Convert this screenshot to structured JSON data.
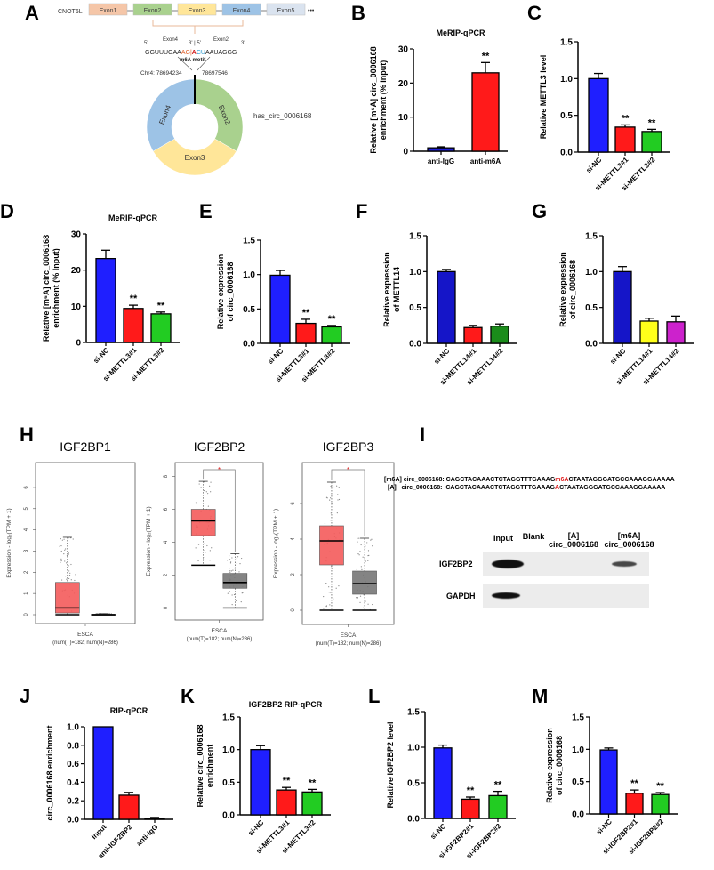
{
  "panels": {
    "A": {
      "letter": "A",
      "gene": "CNOT6L",
      "exons": [
        {
          "label": "Exon1",
          "color": "#f5c6a8"
        },
        {
          "label": "Exon2",
          "color": "#a9d18e"
        },
        {
          "label": "Exon3",
          "color": "#ffe699"
        },
        {
          "label": "Exon4",
          "color": "#9dc3e6"
        },
        {
          "label": "Exon5",
          "color": "#dae3ef"
        }
      ],
      "ellipsis": "•••",
      "junction": {
        "five_prime": "5'",
        "three_prime": "3'",
        "mid": "3' | 5'",
        "left_exon": "Exon4",
        "right_exon": "Exon2",
        "seq_left": "GGUUUGAA",
        "seq_ag": "AG",
        "seq_bar": "|",
        "seq_a": "A",
        "seq_cu": "CU",
        "seq_right": "AAUAGGG",
        "motif": "m6A motif",
        "chr_left": "Chr4: 78694234",
        "chr_right": "78697546"
      },
      "circle": {
        "name": "has_circ_0006168",
        "segments": [
          {
            "label": "Exon2",
            "color": "#a9d18e"
          },
          {
            "label": "Exon3",
            "color": "#ffe699"
          },
          {
            "label": "Exon4",
            "color": "#9dc3e6"
          }
        ]
      }
    },
    "H": {
      "letter": "H",
      "ylabel": "Expression - log₂(TPM + 1)",
      "xlabel": "ESCA",
      "xsub": "(num(T)=182; num(N)=286)",
      "sig": "*"
    },
    "I": {
      "letter": "I",
      "seq_m6a_prefix": "[m6A] circ_0006168: ",
      "seq_m6a_left": "CAGCTACAAACTCTAGGTTTGAAAG",
      "seq_m6a_mark": "m6A",
      "seq_m6a_right": "CTAATAGGGATGCCAAAGGAAAAA",
      "seq_a_prefix": "[A]   circ_0006168:  ",
      "seq_a_left": "CAGCTACAAACTCTAGGTTTGAAAG",
      "seq_a_mark": "A",
      "seq_a_right": "CTAATAGGGATGCCAAAGGAAAAA",
      "columns": [
        "Input",
        "Blank",
        "[A]\ncirc_0006168",
        "[m6A]\ncirc_0006168"
      ],
      "rows": [
        "IGF2BP2",
        "GAPDH"
      ]
    }
  },
  "chart_data": [
    {
      "id": "B",
      "letter": "B",
      "type": "bar",
      "title": "MeRIP-qPCR",
      "ylabel": "Relative [m⁶A] circ_0006168\nenrichment (% Input)",
      "categories": [
        "anti-IgG",
        "anti-m6A"
      ],
      "values": [
        1.0,
        23.0
      ],
      "errors": [
        0.3,
        3.0
      ],
      "colors": [
        "#1f1fd6",
        "#ff1a1a"
      ],
      "sig": [
        "",
        "**"
      ],
      "ylim": [
        0,
        30
      ],
      "yticks": [
        "0",
        "10",
        "20",
        "30"
      ],
      "ytick_values": [
        0,
        10,
        20,
        30
      ],
      "rotate_labels": false
    },
    {
      "id": "C",
      "letter": "C",
      "type": "bar",
      "title": "",
      "ylabel": "Relative METTL3 level",
      "categories": [
        "si-NC",
        "si-METTL3#1",
        "si-METTL3#2"
      ],
      "values": [
        1.0,
        0.34,
        0.28
      ],
      "errors": [
        0.07,
        0.03,
        0.03
      ],
      "colors": [
        "#1f1fff",
        "#ff1a1a",
        "#22cc22"
      ],
      "sig": [
        "",
        "**",
        "**"
      ],
      "ylim": [
        0,
        1.5
      ],
      "yticks": [
        "0.0",
        "0.5",
        "1.0",
        "1.5"
      ],
      "ytick_values": [
        0,
        0.5,
        1.0,
        1.5
      ],
      "rotate_labels": true
    },
    {
      "id": "D",
      "letter": "D",
      "type": "bar",
      "title": "MeRIP-qPCR",
      "ylabel": "Relative [m⁶A] circ_0006168\nenrichment (% Input)",
      "categories": [
        "si-NC",
        "si-METTL3#1",
        "si-METTL3#2"
      ],
      "values": [
        23.2,
        9.4,
        7.9
      ],
      "errors": [
        2.3,
        0.9,
        0.5
      ],
      "colors": [
        "#1f1fff",
        "#ff1a1a",
        "#22cc22"
      ],
      "sig": [
        "",
        "**",
        "**"
      ],
      "ylim": [
        0,
        30
      ],
      "yticks": [
        "0",
        "10",
        "20",
        "30"
      ],
      "ytick_values": [
        0,
        10,
        20,
        30
      ],
      "rotate_labels": true
    },
    {
      "id": "E",
      "letter": "E",
      "type": "bar",
      "title": "",
      "ylabel": "Relative expression\nof circ_0006168",
      "categories": [
        "si-NC",
        "si-METTL3#1",
        "si-METTL3#2"
      ],
      "values": [
        0.99,
        0.29,
        0.24
      ],
      "errors": [
        0.07,
        0.06,
        0.02
      ],
      "colors": [
        "#1f1fff",
        "#ff1a1a",
        "#22cc22"
      ],
      "sig": [
        "",
        "**",
        "**"
      ],
      "ylim": [
        0,
        1.5
      ],
      "yticks": [
        "0.0",
        "0.5",
        "1.0",
        "1.5"
      ],
      "ytick_values": [
        0,
        0.5,
        1.0,
        1.5
      ],
      "rotate_labels": true
    },
    {
      "id": "F",
      "letter": "F",
      "type": "bar",
      "title": "",
      "ylabel": "Relative expression\nof METTL14",
      "categories": [
        "si-NC",
        "si-METTL14#1",
        "si-METTL14#2"
      ],
      "values": [
        1.0,
        0.22,
        0.24
      ],
      "errors": [
        0.03,
        0.03,
        0.03
      ],
      "colors": [
        "#1515c8",
        "#ff1a1a",
        "#1a8c1a"
      ],
      "sig": [
        "",
        "",
        ""
      ],
      "ylim": [
        0,
        1.5
      ],
      "yticks": [
        "0.0",
        "0.5",
        "1.0",
        "1.5"
      ],
      "ytick_values": [
        0,
        0.5,
        1.0,
        1.5
      ],
      "rotate_labels": true
    },
    {
      "id": "G",
      "letter": "G",
      "type": "bar",
      "title": "",
      "ylabel": "Relative expression\nof circ_0006168",
      "categories": [
        "si-NC",
        "si-METTL14#1",
        "si-METTL14#2"
      ],
      "values": [
        1.0,
        0.31,
        0.3
      ],
      "errors": [
        0.07,
        0.04,
        0.08
      ],
      "colors": [
        "#1515c8",
        "#ffff1a",
        "#cc22cc"
      ],
      "sig": [
        "",
        "",
        ""
      ],
      "ylim": [
        0,
        1.5
      ],
      "yticks": [
        "0.0",
        "0.5",
        "1.0",
        "1.5"
      ],
      "ytick_values": [
        0,
        0.5,
        1.0,
        1.5
      ],
      "rotate_labels": true
    },
    {
      "id": "H1",
      "type": "box",
      "title": "IGF2BP1",
      "ylim": [
        0,
        6.5
      ],
      "yticks": [
        "0",
        "1",
        "2",
        "3",
        "4",
        "5",
        "6"
      ],
      "ytick_values": [
        0,
        1,
        2,
        3,
        4,
        5,
        6
      ],
      "boxes": [
        {
          "group": "T",
          "q1": 0.08,
          "median": 0.32,
          "q3": 1.52,
          "whisker_low": 0,
          "whisker_high": 3.65,
          "color": "#f45b5b"
        },
        {
          "group": "N",
          "q1": 0.0,
          "median": 0.0,
          "q3": 0.02,
          "whisker_low": 0,
          "whisker_high": 0.05,
          "color": "#777777"
        }
      ],
      "significant": false
    },
    {
      "id": "H2",
      "type": "box",
      "title": "IGF2BP2",
      "ylim": [
        -0.3,
        8.3
      ],
      "yticks": [
        "0",
        "2",
        "4",
        "6",
        "8"
      ],
      "ytick_values": [
        0,
        2,
        4,
        6,
        8
      ],
      "boxes": [
        {
          "group": "T",
          "q1": 4.4,
          "median": 5.3,
          "q3": 6.0,
          "whisker_low": 2.6,
          "whisker_high": 7.7,
          "color": "#f45b5b"
        },
        {
          "group": "N",
          "q1": 1.2,
          "median": 1.55,
          "q3": 2.1,
          "whisker_low": 0,
          "whisker_high": 3.3,
          "color": "#777777"
        }
      ],
      "significant": true
    },
    {
      "id": "H3",
      "type": "box",
      "title": "IGF2BP3",
      "ylim": [
        -0.3,
        7.8
      ],
      "yticks": [
        "0",
        "2",
        "4",
        "6"
      ],
      "ytick_values": [
        0,
        2,
        4,
        6
      ],
      "boxes": [
        {
          "group": "T",
          "q1": 2.55,
          "median": 3.9,
          "q3": 4.75,
          "whisker_low": 0,
          "whisker_high": 7.2,
          "color": "#f45b5b"
        },
        {
          "group": "N",
          "q1": 0.9,
          "median": 1.5,
          "q3": 2.2,
          "whisker_low": 0,
          "whisker_high": 4.05,
          "color": "#777777"
        }
      ],
      "significant": true
    },
    {
      "id": "J",
      "letter": "J",
      "type": "bar",
      "title": "RIP-qPCR",
      "ylabel": "circ_0006168 enrichment",
      "categories": [
        "Input",
        "anti-IGF2BP2",
        "anti-IgG"
      ],
      "values": [
        1.0,
        0.26,
        0.01
      ],
      "errors": [
        0,
        0.03,
        0.01
      ],
      "colors": [
        "#1f1fff",
        "#ff1a1a",
        "#444444"
      ],
      "sig": [
        "",
        "",
        ""
      ],
      "ylim": [
        0,
        1.0
      ],
      "yticks": [
        "0.0",
        "0.2",
        "0.4",
        "0.6",
        "0.8",
        "1.0"
      ],
      "ytick_values": [
        0,
        0.2,
        0.4,
        0.6,
        0.8,
        1.0
      ],
      "rotate_labels": true
    },
    {
      "id": "K",
      "letter": "K",
      "type": "bar",
      "title": "IGF2BP2 RIP-qPCR",
      "ylabel": "Relative circ_0006168\nenrichment",
      "categories": [
        "si-NC",
        "si-METTL3#1",
        "si-METTL3#2"
      ],
      "values": [
        1.0,
        0.38,
        0.35
      ],
      "errors": [
        0.06,
        0.04,
        0.04
      ],
      "colors": [
        "#1f1fff",
        "#ff1a1a",
        "#22cc22"
      ],
      "sig": [
        "",
        "**",
        "**"
      ],
      "ylim": [
        0,
        1.5
      ],
      "yticks": [
        "0.0",
        "0.5",
        "1.0",
        "1.5"
      ],
      "ytick_values": [
        0,
        0.5,
        1.0,
        1.5
      ],
      "rotate_labels": true
    },
    {
      "id": "L",
      "letter": "L",
      "type": "bar",
      "title": "",
      "ylabel": "Relative IGF2BP2 level",
      "categories": [
        "si-NC",
        "si-IGF2BP2#1",
        "si-IGF2BP2#2"
      ],
      "values": [
        0.99,
        0.27,
        0.32
      ],
      "errors": [
        0.04,
        0.03,
        0.06
      ],
      "colors": [
        "#1f1fff",
        "#ff1a1a",
        "#22cc22"
      ],
      "sig": [
        "",
        "**",
        "**"
      ],
      "ylim": [
        0,
        1.5
      ],
      "yticks": [
        "0.0",
        "0.5",
        "1.0",
        "1.5"
      ],
      "ytick_values": [
        0,
        0.5,
        1.0,
        1.5
      ],
      "rotate_labels": true
    },
    {
      "id": "M",
      "letter": "M",
      "type": "bar",
      "title": "",
      "ylabel": "Relative expression\nof circ_0006168",
      "categories": [
        "si-NC",
        "si-IGF2BP2#1",
        "si-IGF2BP2#2"
      ],
      "values": [
        0.99,
        0.32,
        0.3
      ],
      "errors": [
        0.03,
        0.05,
        0.03
      ],
      "colors": [
        "#1f1fff",
        "#ff1a1a",
        "#22cc22"
      ],
      "sig": [
        "",
        "**",
        "**"
      ],
      "ylim": [
        0,
        1.5
      ],
      "yticks": [
        "0.0",
        "0.5",
        "1.0",
        "1.5"
      ],
      "ytick_values": [
        0,
        0.5,
        1.0,
        1.5
      ],
      "rotate_labels": true
    }
  ]
}
